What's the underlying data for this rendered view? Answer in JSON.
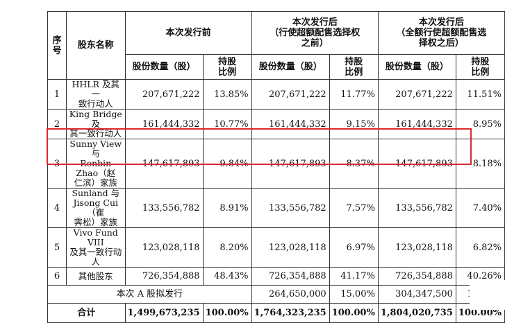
{
  "colors": {
    "highlight": "#e0262d"
  },
  "headers": {
    "no": "序号",
    "name": "股东名称",
    "g1": "本次发行前",
    "g2": [
      "本次发行后",
      "（行使超额配售选择权",
      "之前）"
    ],
    "g3": [
      "本次发行后",
      "（全额行使超额配售选",
      "择权之后）"
    ],
    "shares": "股份数量（股）",
    "ratio": [
      "持股",
      "比例"
    ]
  },
  "rows": [
    {
      "no": "1",
      "name": [
        "HHLR 及其一",
        "致行动人"
      ],
      "pre_shares": "207,671,222",
      "pre_ratio": "13.85%",
      "post1_shares": "207,671,222",
      "post1_ratio": "11.77%",
      "post2_shares": "207,671,222",
      "post2_ratio": "11.51%"
    },
    {
      "no": "2",
      "name": [
        "King Bridge 及",
        "其一致行动人"
      ],
      "pre_shares": "161,444,332",
      "pre_ratio": "10.77%",
      "post1_shares": "161,444,332",
      "post1_ratio": "9.15%",
      "post2_shares": "161,444,332",
      "post2_ratio": "8.95%"
    },
    {
      "no": "3",
      "name": [
        "Sunny View 与",
        "Renbin Zhao（赵",
        "仁滨）家族"
      ],
      "pre_shares": "147,617,893",
      "pre_ratio": "9.84%",
      "post1_shares": "147,617,893",
      "post1_ratio": "8.37%",
      "post2_shares": "147,617,893",
      "post2_ratio": "8.18%"
    },
    {
      "no": "4",
      "name": [
        "Sunland 与",
        "Jisong Cui（崔",
        "霁松）家族"
      ],
      "pre_shares": "133,556,782",
      "pre_ratio": "8.91%",
      "post1_shares": "133,556,782",
      "post1_ratio": "7.57%",
      "post2_shares": "133,556,782",
      "post2_ratio": "7.40%"
    },
    {
      "no": "5",
      "name": [
        "Vivo Fund VIII",
        "及其一致行动",
        "人"
      ],
      "pre_shares": "123,028,118",
      "pre_ratio": "8.20%",
      "post1_shares": "123,028,118",
      "post1_ratio": "6.97%",
      "post2_shares": "123,028,118",
      "post2_ratio": "6.82%"
    },
    {
      "no": "6",
      "name": [
        "其他股东"
      ],
      "pre_shares": "726,354,888",
      "pre_ratio": "48.43%",
      "post1_shares": "726,354,888",
      "post1_ratio": "41.17%",
      "post2_shares": "726,354,888",
      "post2_ratio": "40.26%"
    }
  ],
  "issue_row": {
    "label": "本次 A 股拟发行",
    "post1_shares": "264,650,000",
    "post1_ratio": "15.00%",
    "post2_shares": "304,347,500",
    "post2_ratio": "16.87%"
  },
  "total_row": {
    "label": "合计",
    "pre_shares": "1,499,673,235",
    "pre_ratio": "100.00%",
    "post1_shares": "1,764,323,235",
    "post1_ratio": "100.00%",
    "post2_shares": "1,804,020,735",
    "post2_ratio": "100.00%"
  }
}
